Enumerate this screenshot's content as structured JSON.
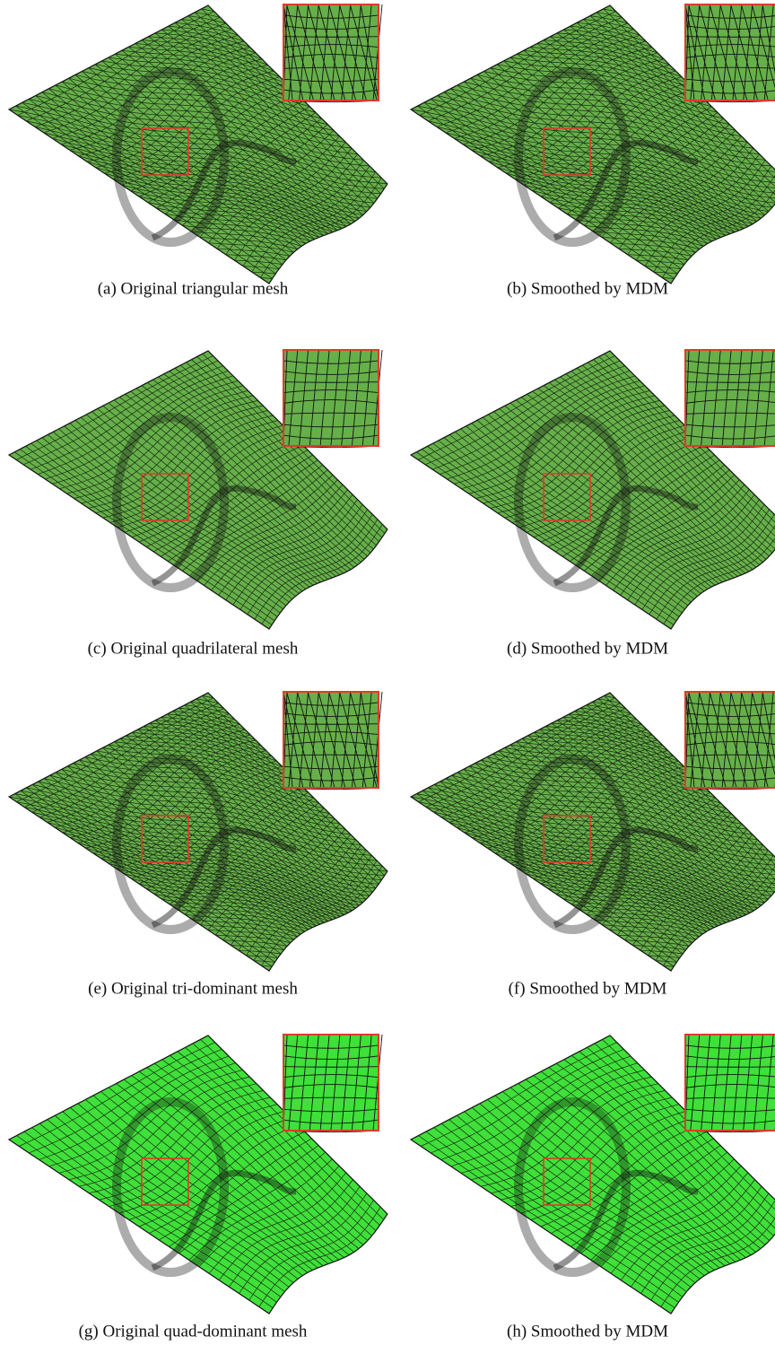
{
  "figure": {
    "panels": [
      {
        "caption": "(a) Original triangular mesh"
      },
      {
        "caption": "(b) Smoothed by MDM"
      },
      {
        "caption": "(c) Original quadrilateral mesh"
      },
      {
        "caption": "(d) Smoothed by MDM"
      },
      {
        "caption": "(e) Original tri-dominant mesh"
      },
      {
        "caption": "(f) Smoothed by MDM"
      },
      {
        "caption": "(g) Original quad-dominant mesh"
      },
      {
        "caption": "(h) Smoothed by MDM"
      }
    ]
  }
}
